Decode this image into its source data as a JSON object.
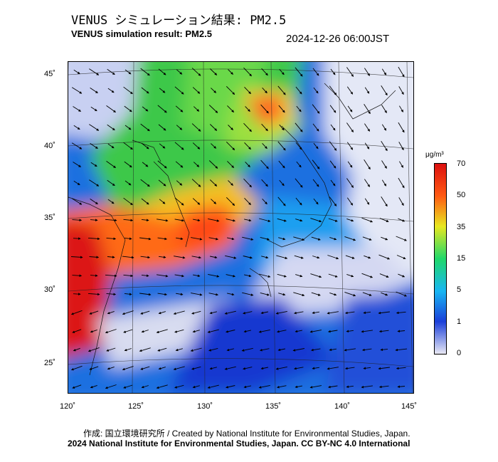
{
  "header": {
    "title_jp": "VENUS シミュレーション結果: PM2.5",
    "title_en": "VENUS simulation result: PM2.5",
    "timestamp": "2024-12-26 06:00JST"
  },
  "axes": {
    "lat_labels": [
      "45˚",
      "40˚",
      "35˚",
      "30˚",
      "25˚"
    ],
    "lon_labels": [
      "120˚",
      "125˚",
      "130˚",
      "135˚",
      "140˚",
      "145˚"
    ]
  },
  "colorbar": {
    "unit": "μg/m³",
    "ticks": [
      "70",
      "50",
      "35",
      "15",
      "5",
      "1",
      "0"
    ],
    "colors": [
      "#e8e8f4",
      "#1a3fd9",
      "#18b6f2",
      "#20d86a",
      "#e8e820",
      "#ff5a12",
      "#dc1010"
    ]
  },
  "footer": {
    "credit_jp": "作成: 国立環境研究所 / Created by National Institute for Environmental Studies, Japan.",
    "copyright": "2024 National Institute for Environmental Studies, Japan. CC BY-NC 4.0 International"
  }
}
